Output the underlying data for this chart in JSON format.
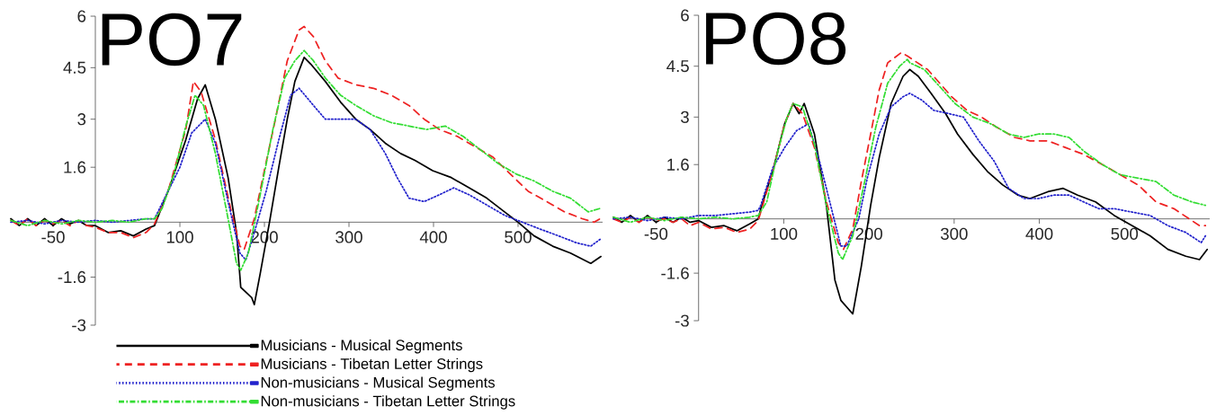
{
  "chart_data": [
    {
      "type": "line",
      "title": "PO7",
      "xlim": [
        -100,
        600
      ],
      "ylim": [
        -3,
        6
      ],
      "xticks": [
        -50,
        100,
        200,
        300,
        400,
        500
      ],
      "yticks": [
        6,
        4.5,
        3,
        1.6,
        -1.6,
        -3
      ],
      "legend": "bottom",
      "series": [
        {
          "name": "Musicians - Musical Segments",
          "color": "#000000",
          "line_style": "solid",
          "x": [
            -100,
            -90,
            -80,
            -70,
            -60,
            -50,
            -40,
            -30,
            -20,
            -10,
            0,
            15,
            30,
            45,
            60,
            70,
            86,
            107,
            121,
            130,
            142,
            157,
            167,
            172,
            185,
            188,
            195,
            206,
            217,
            227,
            236,
            247,
            255,
            272,
            290,
            308,
            325,
            343,
            361,
            378,
            399,
            421,
            442,
            463,
            484,
            500,
            519,
            541,
            562,
            586,
            598
          ],
          "values": [
            0.1,
            -0.1,
            0.1,
            -0.1,
            0.1,
            -0.1,
            0.1,
            -0.05,
            0.05,
            -0.1,
            -0.1,
            -0.3,
            -0.25,
            -0.4,
            -0.2,
            -0.1,
            0.9,
            2.4,
            3.6,
            4.0,
            3.0,
            1.3,
            -0.3,
            -1.9,
            -2.2,
            -2.4,
            -1.5,
            0,
            1.6,
            3.0,
            4.1,
            4.8,
            4.6,
            4.1,
            3.5,
            3.0,
            2.7,
            2.3,
            2.0,
            1.8,
            1.5,
            1.3,
            1.0,
            0.7,
            0.3,
            0,
            -0.4,
            -0.7,
            -0.9,
            -1.2,
            -1.0
          ]
        },
        {
          "name": "Musicians - Tibetan Letter Strings",
          "color": "#ee2222",
          "line_style": "dashed",
          "x": [
            -100,
            -90,
            -80,
            -70,
            -60,
            -50,
            -40,
            -30,
            -20,
            -10,
            0,
            15,
            30,
            45,
            60,
            70,
            86,
            107,
            116,
            125,
            142,
            160,
            171,
            176,
            188,
            199,
            213,
            227,
            241,
            247,
            258,
            272,
            287,
            308,
            329,
            350,
            371,
            389,
            407,
            428,
            449,
            470,
            491,
            512,
            534,
            555,
            576,
            590,
            597
          ],
          "values": [
            0.05,
            -0.1,
            0.1,
            -0.1,
            0.05,
            -0.05,
            0.05,
            -0.1,
            0.05,
            -0.1,
            -0.15,
            -0.3,
            -0.3,
            -0.45,
            -0.3,
            -0.05,
            0.9,
            2.7,
            4.1,
            3.8,
            2.4,
            0.4,
            -0.7,
            -0.8,
            0.1,
            1.4,
            3.0,
            4.7,
            5.6,
            5.7,
            5.4,
            4.7,
            4.2,
            4.0,
            3.9,
            3.7,
            3.4,
            3.0,
            2.7,
            2.5,
            2.2,
            1.9,
            1.4,
            0.9,
            0.6,
            0.3,
            0.1,
            0,
            0.1
          ]
        },
        {
          "name": "Non-musicians - Musical Segments",
          "color": "#2222cc",
          "line_style": "dotted",
          "x": [
            -100,
            -80,
            -60,
            -40,
            -20,
            0,
            20,
            40,
            60,
            70,
            86,
            100,
            114,
            130,
            142,
            157,
            171,
            178,
            188,
            202,
            217,
            231,
            241,
            258,
            272,
            290,
            308,
            325,
            343,
            357,
            371,
            389,
            407,
            424,
            442,
            463,
            484,
            505,
            526,
            548,
            569,
            586,
            597
          ],
          "values": [
            0,
            0.05,
            -0.05,
            0.05,
            0,
            0.05,
            0,
            0.05,
            0.1,
            0.1,
            0.9,
            1.6,
            2.6,
            3.0,
            2.3,
            0.6,
            -0.9,
            -1.1,
            -0.3,
            0.9,
            2.4,
            3.7,
            3.9,
            3.4,
            3.0,
            3.0,
            3.0,
            2.7,
            2.0,
            1.3,
            0.7,
            0.6,
            0.8,
            1.0,
            0.8,
            0.5,
            0.2,
            0,
            -0.2,
            -0.4,
            -0.6,
            -0.7,
            -0.5
          ]
        },
        {
          "name": "Non-musicians - Tibetan Letter Strings",
          "color": "#33dd33",
          "line_style": "dashdot",
          "x": [
            -100,
            -80,
            -60,
            -40,
            -20,
            0,
            20,
            40,
            60,
            70,
            79,
            93,
            107,
            118,
            128,
            142,
            157,
            167,
            172,
            181,
            195,
            210,
            224,
            236,
            247,
            258,
            272,
            290,
            308,
            329,
            350,
            371,
            392,
            414,
            435,
            456,
            477,
            498,
            519,
            541,
            562,
            583,
            597
          ],
          "values": [
            0.05,
            -0.1,
            0.05,
            -0.05,
            0.05,
            0,
            0.05,
            0,
            0.1,
            0.1,
            0.4,
            1.4,
            2.8,
            3.7,
            3.4,
            2.0,
            0.1,
            -1.2,
            -1.4,
            -0.9,
            0.8,
            2.7,
            4.2,
            4.7,
            5.0,
            4.7,
            4.2,
            3.7,
            3.4,
            3.1,
            2.9,
            2.8,
            2.7,
            2.8,
            2.5,
            2.1,
            1.7,
            1.4,
            1.2,
            0.9,
            0.7,
            0.3,
            0.4
          ]
        }
      ]
    },
    {
      "type": "line",
      "title": "PO8",
      "xlim": [
        -100,
        600
      ],
      "ylim": [
        -3,
        6
      ],
      "xticks": [
        -50,
        100,
        200,
        300,
        400,
        500
      ],
      "yticks": [
        6,
        4.5,
        3,
        1.6,
        -1.6,
        -3
      ],
      "series": [
        {
          "color": "#000000",
          "line_style": "solid",
          "x": [
            -100,
            -90,
            -80,
            -70,
            -60,
            -50,
            -40,
            -30,
            -20,
            -10,
            0,
            15,
            30,
            45,
            60,
            70,
            73,
            87,
            101,
            111,
            118,
            124,
            136,
            150,
            160,
            167,
            181,
            191,
            202,
            212,
            226,
            240,
            248,
            258,
            273,
            290,
            304,
            322,
            339,
            357,
            375,
            389,
            410,
            428,
            445,
            466,
            488,
            509,
            530,
            551,
            572,
            588,
            597
          ],
          "values": [
            0.05,
            -0.1,
            0.1,
            -0.1,
            0.1,
            -0.1,
            0.05,
            -0.1,
            0.05,
            -0.1,
            -0.05,
            -0.25,
            -0.2,
            -0.35,
            -0.15,
            0,
            0.3,
            1.4,
            2.8,
            3.4,
            3.1,
            3.4,
            2.5,
            0.4,
            -1.8,
            -2.4,
            -2.8,
            -1.4,
            0.4,
            1.8,
            3.4,
            4.2,
            4.4,
            4.2,
            3.7,
            3.1,
            2.5,
            1.9,
            1.4,
            1.0,
            0.7,
            0.6,
            0.8,
            0.9,
            0.7,
            0.5,
            0.1,
            -0.2,
            -0.5,
            -0.9,
            -1.1,
            -1.2,
            -0.9
          ]
        },
        {
          "color": "#ee2222",
          "line_style": "dashed",
          "x": [
            -100,
            -90,
            -80,
            -70,
            -60,
            -50,
            -40,
            -30,
            -20,
            -10,
            0,
            15,
            30,
            45,
            60,
            70,
            87,
            101,
            111,
            122,
            136,
            150,
            164,
            170,
            181,
            191,
            202,
            212,
            222,
            238,
            245,
            251,
            269,
            283,
            297,
            315,
            332,
            350,
            371,
            389,
            410,
            431,
            452,
            474,
            495,
            516,
            537,
            558,
            576,
            588,
            595
          ],
          "values": [
            0,
            -0.1,
            0.05,
            -0.1,
            0.05,
            -0.05,
            0,
            -0.1,
            0,
            -0.2,
            -0.1,
            -0.3,
            -0.25,
            -0.4,
            -0.3,
            -0.05,
            1.4,
            2.8,
            3.4,
            3.1,
            2.1,
            0.5,
            -0.7,
            -0.9,
            -0.3,
            1.1,
            2.5,
            3.8,
            4.6,
            4.9,
            4.8,
            4.7,
            4.4,
            4.0,
            3.6,
            3.2,
            3.0,
            2.7,
            2.4,
            2.3,
            2.3,
            2.1,
            1.9,
            1.6,
            1.3,
            1.0,
            0.5,
            0.3,
            0,
            -0.2,
            -0.2
          ]
        },
        {
          "color": "#2222cc",
          "line_style": "dotted",
          "x": [
            -100,
            -80,
            -60,
            -40,
            -20,
            0,
            20,
            40,
            60,
            70,
            73,
            87,
            101,
            115,
            129,
            143,
            157,
            167,
            174,
            188,
            198,
            212,
            226,
            240,
            248,
            262,
            276,
            294,
            311,
            329,
            347,
            364,
            382,
            399,
            417,
            435,
            452,
            470,
            488,
            509,
            530,
            551,
            572,
            590,
            595
          ],
          "values": [
            0,
            0.05,
            -0.05,
            0.05,
            0,
            0.1,
            0.1,
            0.15,
            0.2,
            0.25,
            0.4,
            1.5,
            2.1,
            2.6,
            2.8,
            1.6,
            0.2,
            -0.8,
            -0.8,
            0,
            1.2,
            2.5,
            3.3,
            3.6,
            3.7,
            3.5,
            3.2,
            3.1,
            3.0,
            2.3,
            1.7,
            0.9,
            0.6,
            0.6,
            0.7,
            0.7,
            0.5,
            0.3,
            0.3,
            0.2,
            0.1,
            -0.2,
            -0.4,
            -0.7,
            -0.5
          ]
        },
        {
          "color": "#33dd33",
          "line_style": "dashdot",
          "x": [
            -100,
            -80,
            -60,
            -40,
            -20,
            0,
            20,
            40,
            60,
            70,
            80,
            94,
            104,
            111,
            122,
            136,
            150,
            164,
            169,
            181,
            195,
            208,
            222,
            236,
            245,
            248,
            265,
            283,
            301,
            322,
            343,
            364,
            382,
            399,
            417,
            435,
            452,
            474,
            495,
            516,
            537,
            558,
            579,
            595
          ],
          "values": [
            0.05,
            -0.1,
            0.05,
            -0.05,
            0.05,
            0,
            0.05,
            0,
            0.05,
            0.1,
            0.5,
            2.1,
            3.0,
            3.4,
            3.3,
            2.2,
            0.4,
            -1.0,
            -1.2,
            -0.5,
            1.1,
            2.7,
            4.0,
            4.5,
            4.7,
            4.6,
            4.4,
            3.9,
            3.4,
            3.0,
            2.8,
            2.5,
            2.4,
            2.5,
            2.5,
            2.4,
            2.0,
            1.6,
            1.3,
            1.2,
            1.1,
            0.7,
            0.5,
            0.4
          ]
        }
      ]
    }
  ]
}
